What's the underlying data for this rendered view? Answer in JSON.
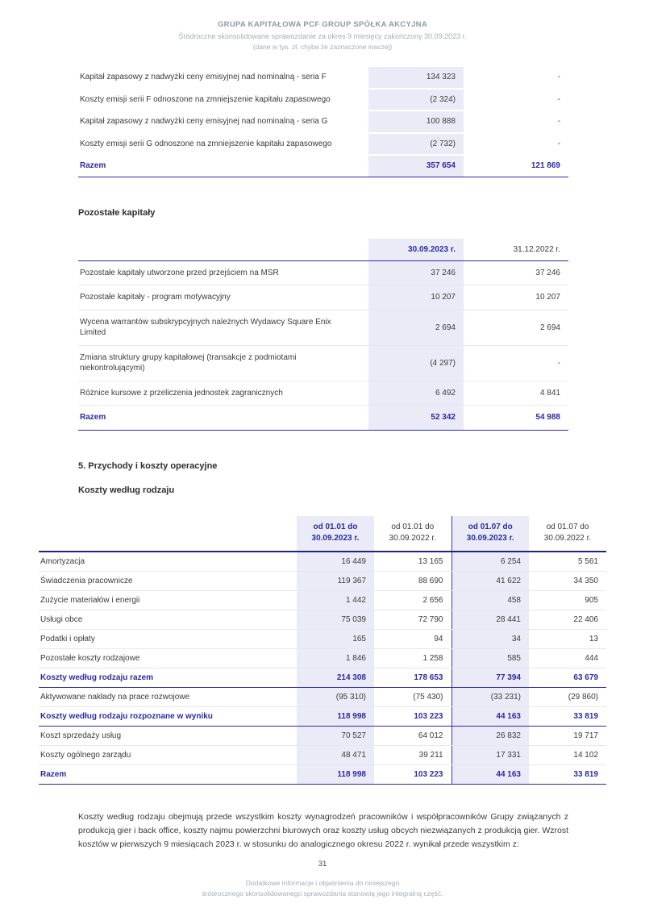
{
  "accent_color": "#2B2BA3",
  "highlight_color": "#EBEBF7",
  "header": {
    "company": "GRUPA KAPITAŁOWA PCF GROUP SPÓŁKA AKCYJNA",
    "subtitle": "Śródroczne skonsolidowane sprawozdanie za okres 9 miesięcy zakończony 30.09.2023 r.",
    "note": "(dane w tys. zł, chyba że zaznaczone inaczej)"
  },
  "table1": {
    "rows": [
      {
        "label": "Kapitał zapasowy z nadwyżki ceny emisyjnej nad nominalną - seria F",
        "values": [
          "134 323",
          "-"
        ],
        "style": "normal"
      },
      {
        "label": "Koszty emisji serii F odnoszone na zmniejszenie kapitału zapasowego",
        "values": [
          "(2 324)",
          "-"
        ],
        "style": "normal"
      },
      {
        "label": "Kapitał zapasowy z nadwyżki ceny emisyjnej nad nominalną - seria G",
        "values": [
          "100 888",
          "-"
        ],
        "style": "normal"
      },
      {
        "label": "Koszty emisji serii G odnoszone na zmniejszenie kapitału zapasowego",
        "values": [
          "(2 732)",
          "-"
        ],
        "style": "normal"
      },
      {
        "label": "Razem",
        "values": [
          "357 654",
          "121 869"
        ],
        "style": "total"
      }
    ]
  },
  "sections": {
    "other_capitals": "Pozostałe kapitały",
    "section5": "5.  Przychody i koszty operacyjne",
    "costs_by_kind": "Koszty według rodzaju"
  },
  "table2": {
    "columns": [
      "30.09.2023 r.",
      "31.12.2022 r."
    ],
    "rows": [
      {
        "label": "Pozostałe kapitały utworzone przed przejściem na MSR",
        "values": [
          "37 246",
          "37 246"
        ],
        "style": "normal"
      },
      {
        "label": "Pozostałe kapitały - program motywacyjny",
        "values": [
          "10 207",
          "10 207"
        ],
        "style": "normal"
      },
      {
        "label": "Wycena warrantów subskrypcyjnych należnych Wydawcy Square Enix Limited",
        "values": [
          "2 694",
          "2 694"
        ],
        "style": "normal"
      },
      {
        "label": "Zmiana struktury grupy kapitałowej (transakcje z podmiotami niekontrolującymi)",
        "values": [
          "(4 297)",
          "-"
        ],
        "style": "normal"
      },
      {
        "label": "Różnice kursowe z przeliczenia jednostek zagranicznych",
        "values": [
          "6 492",
          "4 841"
        ],
        "style": "normal"
      },
      {
        "label": "Razem",
        "values": [
          "52 342",
          "54 988"
        ],
        "style": "total"
      }
    ]
  },
  "table3": {
    "columns": [
      {
        "line1": "od 01.01 do",
        "line2": "30.09.2023 r."
      },
      {
        "line1": "od 01.01 do",
        "line2": "30.09.2022 r."
      },
      {
        "line1": "od 01.07 do",
        "line2": "30.09.2023 r."
      },
      {
        "line1": "od 01.07 do",
        "line2": "30.09.2022 r."
      }
    ],
    "rows": [
      {
        "label": "Amortyzacja",
        "values": [
          "16 449",
          "13 165",
          "6 254",
          "5 561"
        ],
        "style": "normal"
      },
      {
        "label": "Świadczenia pracownicze",
        "values": [
          "119 367",
          "88 690",
          "41 622",
          "34 350"
        ],
        "style": "normal"
      },
      {
        "label": "Zużycie materiałów i energii",
        "values": [
          "1 442",
          "2 656",
          "458",
          "905"
        ],
        "style": "normal"
      },
      {
        "label": "Usługi obce",
        "values": [
          "75 039",
          "72 790",
          "28 441",
          "22 406"
        ],
        "style": "normal"
      },
      {
        "label": "Podatki i opłaty",
        "values": [
          "165",
          "94",
          "34",
          "13"
        ],
        "style": "normal"
      },
      {
        "label": "Pozostałe koszty rodzajowe",
        "values": [
          "1 846",
          "1 258",
          "585",
          "444"
        ],
        "style": "normal"
      },
      {
        "label": "Koszty według rodzaju razem",
        "values": [
          "214 308",
          "178 653",
          "77 394",
          "63 679"
        ],
        "style": "total"
      },
      {
        "label": "Aktywowane nakłady na prace rozwojowe",
        "values": [
          "(95 310)",
          "(75 430)",
          "(33 231)",
          "(29 860)"
        ],
        "style": "normal"
      },
      {
        "label": "Koszty według rodzaju rozpoznane w wyniku",
        "values": [
          "118 998",
          "103 223",
          "44 163",
          "33 819"
        ],
        "style": "total"
      },
      {
        "label": "Koszt sprzedaży usług",
        "values": [
          "70 527",
          "64 012",
          "26 832",
          "19 717"
        ],
        "style": "normal"
      },
      {
        "label": "Koszty ogólnego zarządu",
        "values": [
          "48 471",
          "39 211",
          "17 331",
          "14 102"
        ],
        "style": "normal"
      },
      {
        "label": "Razem",
        "values": [
          "118 998",
          "103 223",
          "44 163",
          "33 819"
        ],
        "style": "total"
      }
    ]
  },
  "paragraph": "Koszty według rodzaju obejmują przede wszystkim koszty wynagrodzeń pracowników i współpracowników Grupy związanych z produkcją gier i back office, koszty najmu powierzchni biurowych oraz koszty usług obcych niezwiązanych z produkcją gier. Wzrost kosztów w pierwszych 9 miesiącach 2023 r. w stosunku do analogicznego okresu 2022 r. wynikał przede wszystkim z:",
  "footer": {
    "page_number": "31",
    "note_line1": "Dodatkowe informacje i objaśnienia do niniejszego",
    "note_line2": "śródrocznego skonsolidowanego sprawozdania  stanowią jego integralną część."
  }
}
